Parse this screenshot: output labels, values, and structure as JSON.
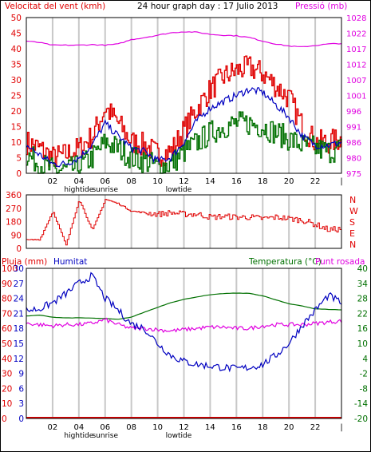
{
  "colors": {
    "wind_speed": "#e00000",
    "wind_avg": "#0000c0",
    "wind_lull": "#007000",
    "pressure": "#e000e0",
    "direction": "#e00000",
    "rain": "#e00000",
    "humidity": "#0000c0",
    "temperature": "#007000",
    "dewpoint": "#e000e0",
    "grid": "#c8c8c8",
    "frame": "#000000"
  },
  "header": {
    "wind_label": "Velocitat del vent (kmh)",
    "title": "24 hour graph day : 17 Julio 2013",
    "pressure_label": "Pressió (mb)"
  },
  "lower_header": {
    "rain_label": "Pluja (mm)",
    "humidity_label": "Humitat",
    "temp_label": "Temperatura (°C)",
    "dew_label": "Punt rosada"
  },
  "time_axis": {
    "ticks": [
      "02",
      "04",
      "06",
      "08",
      "10",
      "12",
      "14",
      "16",
      "18",
      "20",
      "22",
      "|"
    ],
    "events": [
      "hightide",
      "sunrise",
      "lowtide"
    ]
  },
  "chart_data": [
    {
      "type": "line",
      "title": "24 hour graph day : 17 Julio 2013",
      "x_ticks": [
        "02",
        "04",
        "06",
        "08",
        "10",
        "12",
        "14",
        "16",
        "18",
        "20",
        "22"
      ],
      "y_left_label": "Velocitat del vent (kmh)",
      "y_left_ticks": [
        0,
        5,
        10,
        15,
        20,
        25,
        30,
        35,
        40,
        45,
        50
      ],
      "y_left_lim": [
        0,
        50
      ],
      "y_right_label": "Pressió (mb)",
      "y_right_ticks": [
        975,
        980,
        986,
        991,
        996,
        1001,
        1007,
        1012,
        1017,
        1022,
        1028
      ],
      "y_right_lim": [
        975,
        1028
      ],
      "hours": [
        0,
        1,
        2,
        3,
        4,
        5,
        6,
        7,
        8,
        9,
        10,
        11,
        12,
        13,
        14,
        15,
        16,
        17,
        18,
        19,
        20,
        21,
        22,
        23,
        24
      ],
      "series": [
        {
          "key": "gust",
          "values": [
            10,
            8,
            5,
            6,
            8,
            12,
            21,
            16,
            10,
            9,
            6,
            7,
            14,
            21,
            27,
            31,
            33,
            34,
            32,
            28,
            24,
            15,
            10,
            10,
            11
          ]
        },
        {
          "key": "avg",
          "values": [
            9,
            6,
            3,
            3,
            5,
            9,
            16,
            12,
            8,
            7,
            4,
            5,
            10,
            17,
            21,
            23,
            25,
            27,
            26,
            22,
            18,
            12,
            9,
            9,
            10
          ]
        },
        {
          "key": "lull",
          "values": [
            6,
            3,
            1,
            1,
            2,
            5,
            10,
            8,
            5,
            4,
            2,
            3,
            7,
            10,
            13,
            15,
            16,
            16,
            15,
            13,
            11,
            9,
            8,
            7,
            8
          ]
        },
        {
          "key": "pressure",
          "values": [
            1020.0,
            1019.5,
            1018.6,
            1018.6,
            1018.6,
            1018.8,
            1018.6,
            1019.0,
            1020.5,
            1021.2,
            1022.0,
            1022.8,
            1023.2,
            1023.0,
            1022.3,
            1022.0,
            1021.8,
            1021.2,
            1020.0,
            1019.0,
            1018.3,
            1018.0,
            1018.5,
            1019.0,
            1019.2
          ]
        }
      ]
    },
    {
      "type": "line",
      "y_ticks": [
        0,
        90,
        180,
        270,
        360
      ],
      "y_lim": [
        0,
        360
      ],
      "compass_labels": [
        "N",
        "W",
        "S",
        "E",
        "N"
      ],
      "hours": [
        0,
        1,
        2,
        3,
        4,
        5,
        6,
        7,
        8,
        9,
        10,
        11,
        12,
        13,
        14,
        15,
        16,
        17,
        18,
        19,
        20,
        21,
        22,
        23,
        24
      ],
      "series": [
        {
          "key": "direction",
          "values": [
            55,
            60,
            250,
            20,
            330,
            120,
            330,
            300,
            250,
            240,
            230,
            240,
            230,
            230,
            210,
            215,
            210,
            210,
            200,
            210,
            200,
            190,
            160,
            125,
            130
          ]
        }
      ]
    },
    {
      "type": "line",
      "y_left_label": "Pluja (mm)",
      "y_left_ticks_outer": [
        0,
        10,
        20,
        30,
        40,
        50,
        60,
        70,
        80,
        90,
        100
      ],
      "y_left_ticks_inner": [
        0,
        3,
        6,
        9,
        12,
        15,
        18,
        21,
        24,
        27,
        30
      ],
      "y_right_label": "Temperatura (°C)",
      "y_right_ticks": [
        -20,
        -14,
        -8,
        -2,
        4,
        10,
        16,
        22,
        28,
        34,
        40
      ],
      "y_right_lim": [
        -20,
        40
      ],
      "hours": [
        0,
        1,
        2,
        3,
        4,
        5,
        6,
        7,
        8,
        9,
        10,
        11,
        12,
        13,
        14,
        15,
        16,
        17,
        18,
        19,
        20,
        21,
        22,
        23,
        24
      ],
      "series": [
        {
          "key": "humidity",
          "humidity_values": [
            72,
            73,
            77,
            83,
            90,
            95,
            80,
            72,
            63,
            60,
            50,
            42,
            38,
            36,
            35,
            34,
            33,
            34,
            36,
            42,
            50,
            62,
            72,
            82,
            77
          ]
        },
        {
          "key": "temperature",
          "values": [
            20.9,
            21.3,
            20.5,
            20.2,
            20.2,
            20.1,
            19.9,
            19.6,
            20.5,
            22.5,
            24.4,
            26.3,
            27.6,
            28.6,
            29.4,
            29.9,
            30.1,
            30.0,
            29.0,
            27.4,
            25.8,
            25.0,
            23.8,
            23.6,
            23.4
          ]
        },
        {
          "key": "dewpoint",
          "values": [
            18,
            17.5,
            17,
            17.5,
            17.5,
            18,
            19.5,
            17.5,
            16,
            16,
            15.5,
            15,
            15.5,
            16,
            16.5,
            16.5,
            16,
            16,
            17,
            17.5,
            17.5,
            17.5,
            18,
            18.5,
            19
          ]
        },
        {
          "key": "rain",
          "values": [
            0,
            0,
            0,
            0,
            0,
            0,
            0,
            0,
            0,
            0,
            0,
            0,
            0,
            0,
            0,
            0,
            0,
            0,
            0,
            0,
            0,
            0,
            0,
            0,
            0
          ]
        }
      ]
    }
  ]
}
